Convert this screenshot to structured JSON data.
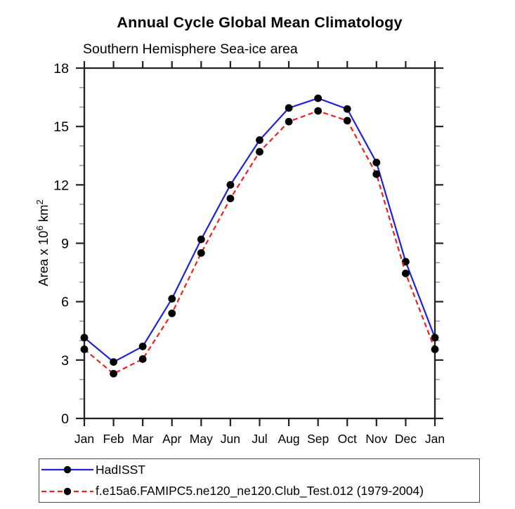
{
  "page": {
    "title": "Annual Cycle Global Mean Climatology",
    "subtitle": "Southern Hemisphere Sea-ice area"
  },
  "chart_data": {
    "type": "line",
    "title": "Annual Cycle Global Mean Climatology",
    "subtitle": "Southern Hemisphere Sea-ice area",
    "xlabel": "",
    "ylabel": "Area x 10⁶ km²",
    "ylabel_parts": [
      {
        "text": "Area x 10",
        "sup": false
      },
      {
        "text": "6",
        "sup": true
      },
      {
        "text": " km",
        "sup": false
      },
      {
        "text": "2",
        "sup": true
      }
    ],
    "x_categories": [
      "Jan",
      "Feb",
      "Mar",
      "Apr",
      "May",
      "Jun",
      "Jul",
      "Aug",
      "Sep",
      "Oct",
      "Nov",
      "Dec",
      "Jan"
    ],
    "ylim": [
      0,
      18
    ],
    "ytick_major": [
      0,
      3,
      6,
      9,
      12,
      15,
      18
    ],
    "ytick_minor_step": 1,
    "grid": false,
    "frame": true,
    "legend_position": "bottom",
    "series": [
      {
        "name": "HadISST",
        "color": "#2020dd",
        "style": "solid",
        "marker": "circle",
        "marker_color": "#000000",
        "values": [
          4.15,
          2.9,
          3.7,
          6.15,
          9.2,
          12.0,
          14.3,
          15.95,
          16.45,
          15.9,
          13.15,
          8.05,
          4.15
        ]
      },
      {
        "name": "f.e15a6.FAMIPC5.ne120_ne120.Club_Test.012 (1979-2004)",
        "color": "#ee2020",
        "style": "dashed",
        "marker": "circle",
        "marker_color": "#000000",
        "values": [
          3.55,
          2.3,
          3.05,
          5.4,
          8.5,
          11.3,
          13.7,
          15.25,
          15.8,
          15.3,
          12.55,
          7.45,
          3.55
        ]
      }
    ],
    "style_colors": {
      "axis": "#222222",
      "minor_tick": "#8c8c8c",
      "text": "#000000"
    }
  }
}
